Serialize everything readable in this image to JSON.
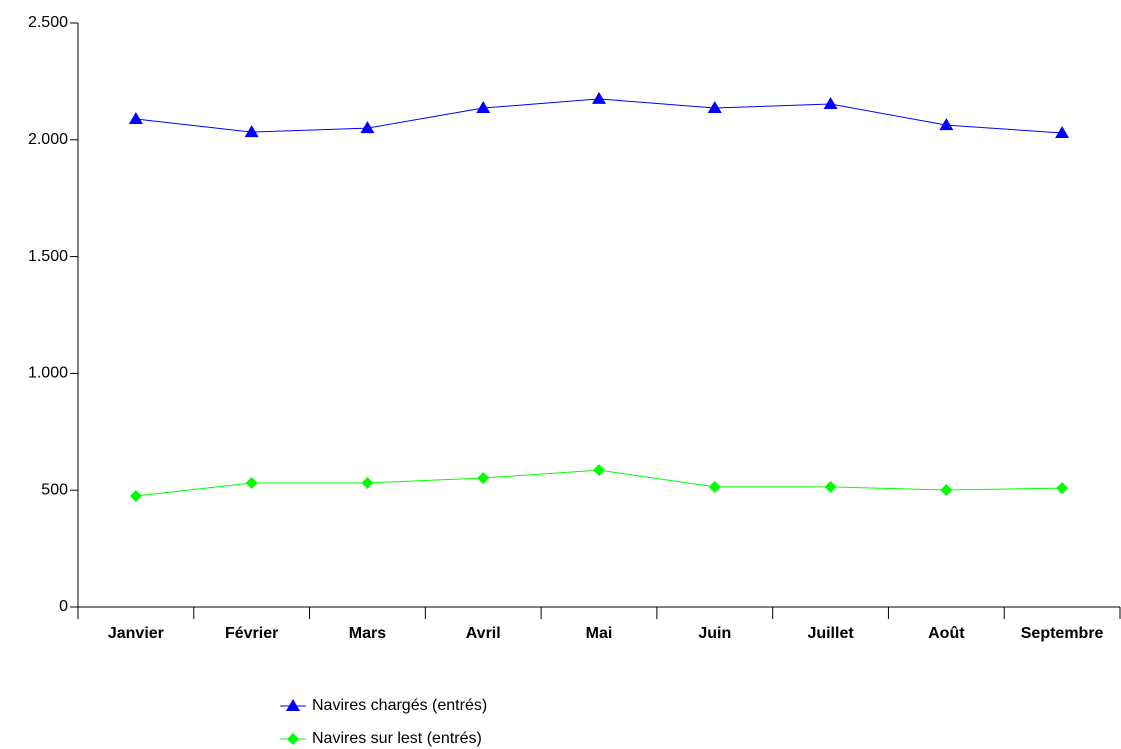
{
  "chart_data": {
    "type": "line",
    "categories": [
      "Janvier",
      "Février",
      "Mars",
      "Avril",
      "Mai",
      "Juin",
      "Juillet",
      "Août",
      "Septembre"
    ],
    "series": [
      {
        "name": "Navires chargés (entrés)",
        "color": "#0000ff",
        "marker": "triangle",
        "values": [
          2089,
          2033,
          2050,
          2136,
          2175,
          2136,
          2153,
          2063,
          2029
        ]
      },
      {
        "name": "Navires sur lest (entrés)",
        "color": "#00ff00",
        "marker": "diamond",
        "values": [
          475,
          531,
          531,
          552,
          586,
          514,
          514,
          501,
          509
        ]
      }
    ],
    "ylim": [
      0,
      2500
    ],
    "yticks": [
      0,
      500,
      {
        "value": 1000,
        "label": "1.000"
      },
      {
        "value": 1500,
        "label": "1.500"
      },
      {
        "value": 2000,
        "label": "2.000"
      },
      {
        "value": 2500,
        "label": "2.500"
      }
    ],
    "grid": false
  }
}
